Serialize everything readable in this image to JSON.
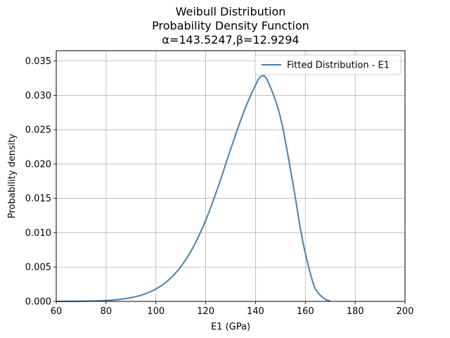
{
  "chart_data": {
    "type": "line",
    "title_lines": [
      "Weibull Distribution",
      "Probability Density Function",
      "α=143.5247,β=12.9294"
    ],
    "xlabel": "E1 (GPa)",
    "ylabel": "Probability density",
    "xlim": [
      60,
      200
    ],
    "ylim": [
      0,
      0.0365
    ],
    "x_ticks": [
      60,
      80,
      100,
      120,
      140,
      160,
      180,
      200
    ],
    "x_tick_labels": [
      "60",
      "80",
      "100",
      "120",
      "140",
      "160",
      "180",
      "200"
    ],
    "y_ticks": [
      0,
      0.005,
      0.01,
      0.015,
      0.02,
      0.025,
      0.03,
      0.035
    ],
    "y_tick_labels": [
      "0.000",
      "0.005",
      "0.010",
      "0.015",
      "0.020",
      "0.025",
      "0.030",
      "0.035"
    ],
    "grid": true,
    "legend_position": "top-right",
    "series": [
      {
        "name": "Fitted Distribution - E1",
        "color": "#4682b4",
        "x": [
          60,
          70,
          80,
          85,
          90,
          95,
          100,
          105,
          110,
          115,
          120,
          125,
          130,
          135,
          140,
          142.5,
          145,
          150,
          155,
          158,
          160,
          163,
          165,
          168,
          170
        ],
        "y": [
          0.0,
          2e-05,
          0.00013,
          0.00028,
          0.00054,
          0.00101,
          0.0018,
          0.00308,
          0.00505,
          0.00791,
          0.01181,
          0.01669,
          0.02215,
          0.0273,
          0.0315,
          0.0328,
          0.032,
          0.0268,
          0.0172,
          0.0106,
          0.007,
          0.0028,
          0.0013,
          0.0003,
          8e-05
        ]
      }
    ]
  }
}
